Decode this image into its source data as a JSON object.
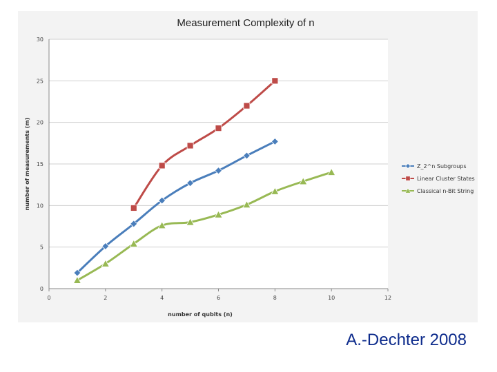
{
  "credit": "A.-Dechter 2008",
  "chart_data": {
    "type": "line",
    "title": "Measurement Complexity of n",
    "xlabel": "number of qubits (n)",
    "ylabel": "number of measurements (m)",
    "xlim": [
      0,
      12
    ],
    "ylim": [
      0,
      30
    ],
    "xticks": [
      0,
      2,
      4,
      6,
      8,
      10,
      12
    ],
    "yticks": [
      0,
      5,
      10,
      15,
      20,
      25,
      30
    ],
    "grid": "horizontal",
    "legend_position": "right",
    "series": [
      {
        "name": "Z_2^n Subgroups",
        "color": "#4a7ebb",
        "marker": "diamond",
        "x": [
          1,
          2,
          3,
          4,
          5,
          6,
          7,
          8
        ],
        "y": [
          1.9,
          5.1,
          7.8,
          10.6,
          12.7,
          14.2,
          16.0,
          17.7
        ]
      },
      {
        "name": "Linear Cluster States",
        "color": "#be4b48",
        "marker": "square",
        "x": [
          3,
          4,
          5,
          6,
          7,
          8
        ],
        "y": [
          9.7,
          14.8,
          17.2,
          19.3,
          22.0,
          25.0
        ]
      },
      {
        "name": "Classical n-Bit String",
        "color": "#98b954",
        "marker": "triangle",
        "x": [
          1,
          2,
          3,
          4,
          5,
          6,
          7,
          8,
          9,
          10
        ],
        "y": [
          1.0,
          3.0,
          5.4,
          7.6,
          8.0,
          8.9,
          10.1,
          11.7,
          12.9,
          14.0
        ]
      }
    ]
  }
}
